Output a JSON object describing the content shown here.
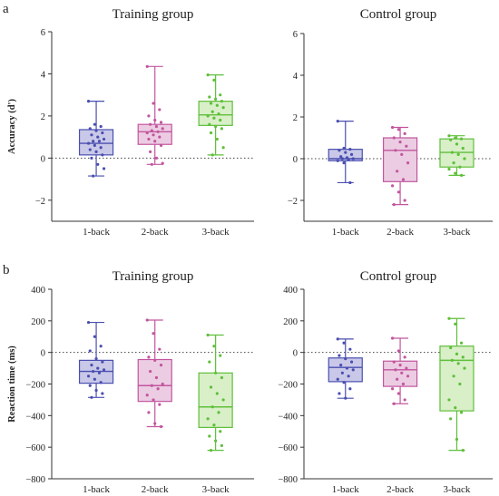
{
  "chart_data": [
    {
      "type": "box",
      "panel": "a",
      "title": "Training group",
      "ylabel": "Accuracy (d')",
      "ylim": [
        -3,
        6
      ],
      "yticks": [
        -2,
        0,
        2,
        4,
        6
      ],
      "reference_line": 0,
      "categories": [
        "1-back",
        "2-back",
        "3-back"
      ],
      "colors": [
        "#4a4fb0",
        "#c2569e",
        "#5fbf3a"
      ],
      "fills": [
        "#c9c8e8",
        "#eccce3",
        "#d8efc8"
      ],
      "boxes": [
        {
          "min": -0.85,
          "q1": 0.15,
          "median": 0.7,
          "q3": 1.35,
          "max": 2.7,
          "points": [
            2.7,
            1.6,
            1.5,
            1.4,
            1.3,
            1.2,
            1.1,
            1.0,
            0.9,
            0.8,
            0.8,
            0.7,
            0.6,
            0.5,
            0.4,
            0.3,
            0.15,
            0.0,
            -0.3,
            -0.5,
            -0.85
          ]
        },
        {
          "min": -0.3,
          "q1": 0.65,
          "median": 1.25,
          "q3": 1.6,
          "max": 4.35,
          "points": [
            4.35,
            2.6,
            2.3,
            2.0,
            1.8,
            1.7,
            1.6,
            1.5,
            1.4,
            1.3,
            1.25,
            1.2,
            1.1,
            1.0,
            0.9,
            0.8,
            0.6,
            0.3,
            0.0,
            -0.25,
            -0.3
          ]
        },
        {
          "min": 0.15,
          "q1": 1.55,
          "median": 2.05,
          "q3": 2.7,
          "max": 3.95,
          "points": [
            3.95,
            3.7,
            3.0,
            2.9,
            2.8,
            2.7,
            2.6,
            2.5,
            2.4,
            2.2,
            2.1,
            2.0,
            1.9,
            1.8,
            1.6,
            1.5,
            1.4,
            1.2,
            0.9,
            0.5,
            0.15
          ]
        }
      ]
    },
    {
      "type": "box",
      "panel": "",
      "title": "Control group",
      "ylabel": "",
      "ylim": [
        -3,
        6
      ],
      "yticks": [
        -2,
        0,
        2,
        4,
        6
      ],
      "reference_line": 0,
      "categories": [
        "1-back",
        "2-back",
        "3-back"
      ],
      "colors": [
        "#4a4fb0",
        "#c2569e",
        "#5fbf3a"
      ],
      "fills": [
        "#c9c8e8",
        "#eccce3",
        "#d8efc8"
      ],
      "boxes": [
        {
          "min": -1.15,
          "q1": -0.1,
          "median": 0.0,
          "q3": 0.45,
          "max": 1.8,
          "points": [
            1.8,
            0.5,
            0.45,
            0.4,
            0.3,
            0.2,
            0.1,
            0.05,
            0.0,
            0.0,
            -0.05,
            -0.1,
            -0.2,
            -1.15
          ]
        },
        {
          "min": -2.2,
          "q1": -1.1,
          "median": 0.4,
          "q3": 1.0,
          "max": 1.5,
          "points": [
            1.5,
            1.4,
            1.2,
            1.0,
            0.8,
            0.6,
            0.4,
            0.2,
            -0.2,
            -0.6,
            -1.0,
            -1.3,
            -1.6,
            -2.0,
            -2.2
          ]
        },
        {
          "min": -0.8,
          "q1": -0.4,
          "median": 0.3,
          "q3": 0.95,
          "max": 1.1,
          "points": [
            1.1,
            1.0,
            0.95,
            0.9,
            0.7,
            0.5,
            0.3,
            0.2,
            0.0,
            -0.2,
            -0.4,
            -0.5,
            -0.7,
            -0.8
          ]
        }
      ]
    },
    {
      "type": "box",
      "panel": "b",
      "title": "Training group",
      "ylabel": "Reaction time (ms)",
      "ylim": [
        -800,
        400
      ],
      "yticks": [
        -800,
        -600,
        -400,
        -200,
        0,
        200,
        400
      ],
      "reference_line": 0,
      "categories": [
        "1-back",
        "2-back",
        "3-back"
      ],
      "colors": [
        "#4a4fb0",
        "#c2569e",
        "#5fbf3a"
      ],
      "fills": [
        "#c9c8e8",
        "#eccce3",
        "#d8efc8"
      ],
      "boxes": [
        {
          "min": -285,
          "q1": -195,
          "median": -120,
          "q3": -50,
          "max": 190,
          "points": [
            190,
            100,
            40,
            10,
            -40,
            -60,
            -80,
            -100,
            -110,
            -120,
            -130,
            -150,
            -170,
            -190,
            -210,
            -240,
            -260,
            -285
          ]
        },
        {
          "min": -470,
          "q1": -310,
          "median": -210,
          "q3": -45,
          "max": 205,
          "points": [
            205,
            120,
            20,
            -30,
            -50,
            -80,
            -120,
            -160,
            -200,
            -210,
            -230,
            -270,
            -300,
            -330,
            -380,
            -450,
            -470
          ]
        },
        {
          "min": -620,
          "q1": -475,
          "median": -345,
          "q3": -130,
          "max": 110,
          "points": [
            110,
            40,
            -20,
            -60,
            -130,
            -160,
            -220,
            -260,
            -300,
            -345,
            -380,
            -420,
            -460,
            -500,
            -530,
            -560,
            -590,
            -620
          ]
        }
      ]
    },
    {
      "type": "box",
      "panel": "",
      "title": "Control group",
      "ylabel": "",
      "ylim": [
        -800,
        400
      ],
      "yticks": [
        -800,
        -600,
        -400,
        -200,
        0,
        200,
        400
      ],
      "reference_line": 0,
      "categories": [
        "1-back",
        "2-back",
        "3-back"
      ],
      "colors": [
        "#4a4fb0",
        "#c2569e",
        "#5fbf3a"
      ],
      "fills": [
        "#c9c8e8",
        "#eccce3",
        "#d8efc8"
      ],
      "boxes": [
        {
          "min": -290,
          "q1": -185,
          "median": -95,
          "q3": -35,
          "max": 85,
          "points": [
            85,
            60,
            20,
            -20,
            -40,
            -60,
            -80,
            -100,
            -110,
            -130,
            -150,
            -170,
            -190,
            -230,
            -260,
            -290
          ]
        },
        {
          "min": -325,
          "q1": -215,
          "median": -110,
          "q3": -55,
          "max": 90,
          "points": [
            90,
            10,
            -30,
            -60,
            -80,
            -100,
            -110,
            -130,
            -150,
            -170,
            -200,
            -230,
            -260,
            -300,
            -325
          ]
        },
        {
          "min": -620,
          "q1": -370,
          "median": -50,
          "q3": 40,
          "max": 215,
          "points": [
            215,
            180,
            60,
            30,
            -10,
            -30,
            -50,
            -70,
            -100,
            -150,
            -200,
            -300,
            -350,
            -380,
            -420,
            -550,
            -620
          ]
        }
      ]
    }
  ]
}
